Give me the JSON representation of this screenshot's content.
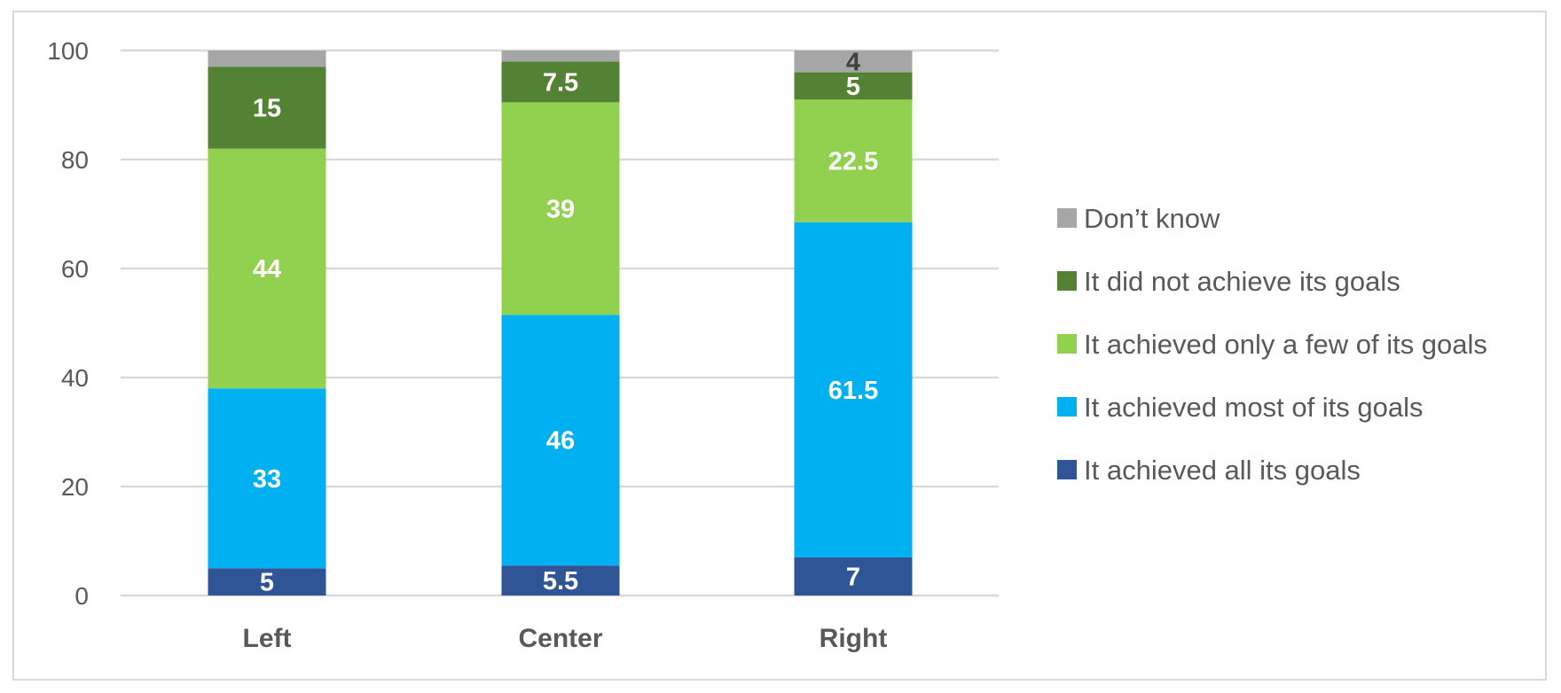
{
  "chart_data": {
    "type": "bar",
    "stacked": true,
    "categories": [
      "Left",
      "Center",
      "Right"
    ],
    "series": [
      {
        "name": "It achieved all its goals",
        "values": [
          5,
          5.5,
          7
        ],
        "color": "#2f5597",
        "label_color": "#ffffff"
      },
      {
        "name": "It achieved most of its goals",
        "values": [
          33,
          46,
          61.5
        ],
        "color": "#00b0f0",
        "label_color": "#ffffff"
      },
      {
        "name": "It achieved only a few of its goals",
        "values": [
          44,
          39,
          22.5
        ],
        "color": "#92d050",
        "label_color": "#ffffff"
      },
      {
        "name": "It did not achieve its goals",
        "values": [
          15,
          7.5,
          5
        ],
        "color": "#548235",
        "label_color": "#ffffff"
      },
      {
        "name": "Don’t know",
        "values": [
          3,
          2,
          4
        ],
        "color": "#a6a6a6",
        "label_color": "#404040",
        "labels_shown": [
          false,
          false,
          true
        ]
      }
    ],
    "ylim": [
      0,
      100
    ],
    "yticks": [
      0,
      20,
      40,
      60,
      80,
      100
    ],
    "grid": true,
    "legend": "right",
    "legend_order": "reverse",
    "title": "",
    "xlabel": "",
    "ylabel": ""
  }
}
